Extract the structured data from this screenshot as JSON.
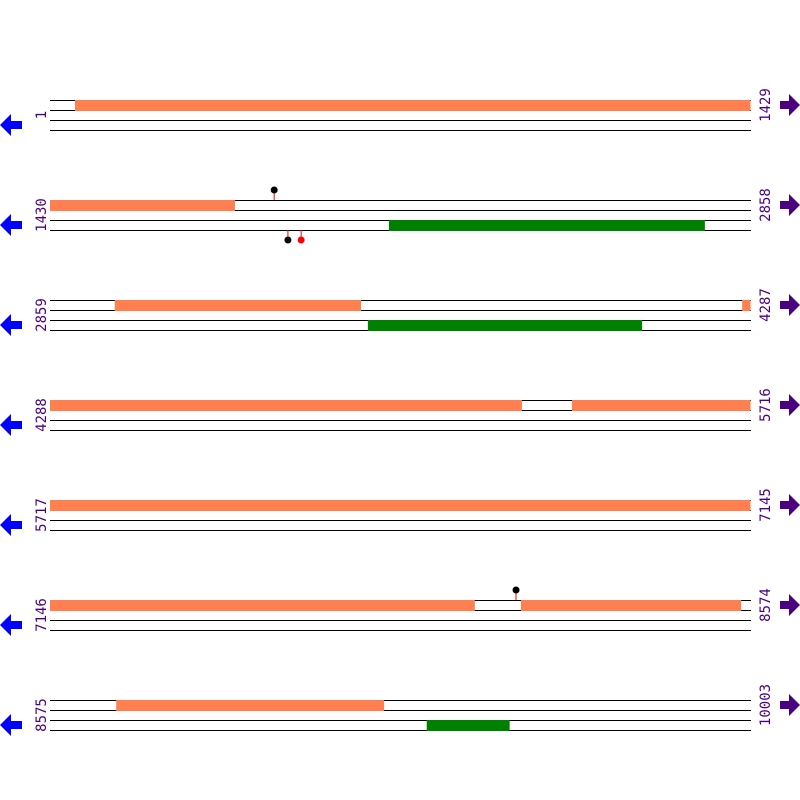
{
  "colors": {
    "top_feature": "#ff7f50",
    "bottom_feature": "#008000",
    "line": "#000000",
    "label": "#4b0082",
    "left_arrow": "#0000ff",
    "right_arrow": "#4b0082",
    "marker_black": "#000000",
    "marker_red": "#ff0000",
    "marker_stick": "#ff0000"
  },
  "icons": {
    "left": "arrow-left-icon",
    "right": "arrow-right-icon"
  },
  "bp_per_row": 1429,
  "rows": [
    {
      "start": "1",
      "end": "1429",
      "top": [
        [
          52,
          1429
        ]
      ],
      "bottom": [],
      "markers": []
    },
    {
      "start": "1430",
      "end": "2858",
      "top": [
        [
          1430,
          1807
        ]
      ],
      "bottom": [
        [
          2121,
          2765
        ]
      ],
      "markers": [
        {
          "pos": 1887,
          "strand": "top",
          "color": "black"
        },
        {
          "pos": 1915,
          "strand": "bottom",
          "color": "black"
        },
        {
          "pos": 1942,
          "strand": "bottom",
          "color": "red"
        }
      ]
    },
    {
      "start": "2859",
      "end": "4287",
      "top": [
        [
          2991,
          3493
        ],
        [
          4270,
          4287
        ]
      ],
      "bottom": [
        [
          3507,
          4066
        ]
      ],
      "markers": []
    },
    {
      "start": "4288",
      "end": "5716",
      "top": [
        [
          4288,
          5250
        ],
        [
          5352,
          5716
        ]
      ],
      "bottom": [],
      "markers": []
    },
    {
      "start": "5717",
      "end": "7145",
      "top": [
        [
          5717,
          7145
        ]
      ],
      "bottom": [],
      "markers": []
    },
    {
      "start": "7146",
      "end": "8574",
      "top": [
        [
          7146,
          8012
        ],
        [
          8106,
          8555
        ]
      ],
      "bottom": [],
      "markers": [
        {
          "pos": 8096,
          "strand": "top",
          "color": "black"
        }
      ]
    },
    {
      "start": "8575",
      "end": "10003",
      "top": [
        [
          8710,
          9256
        ]
      ],
      "bottom": [
        [
          9343,
          9512
        ]
      ],
      "markers": []
    }
  ]
}
